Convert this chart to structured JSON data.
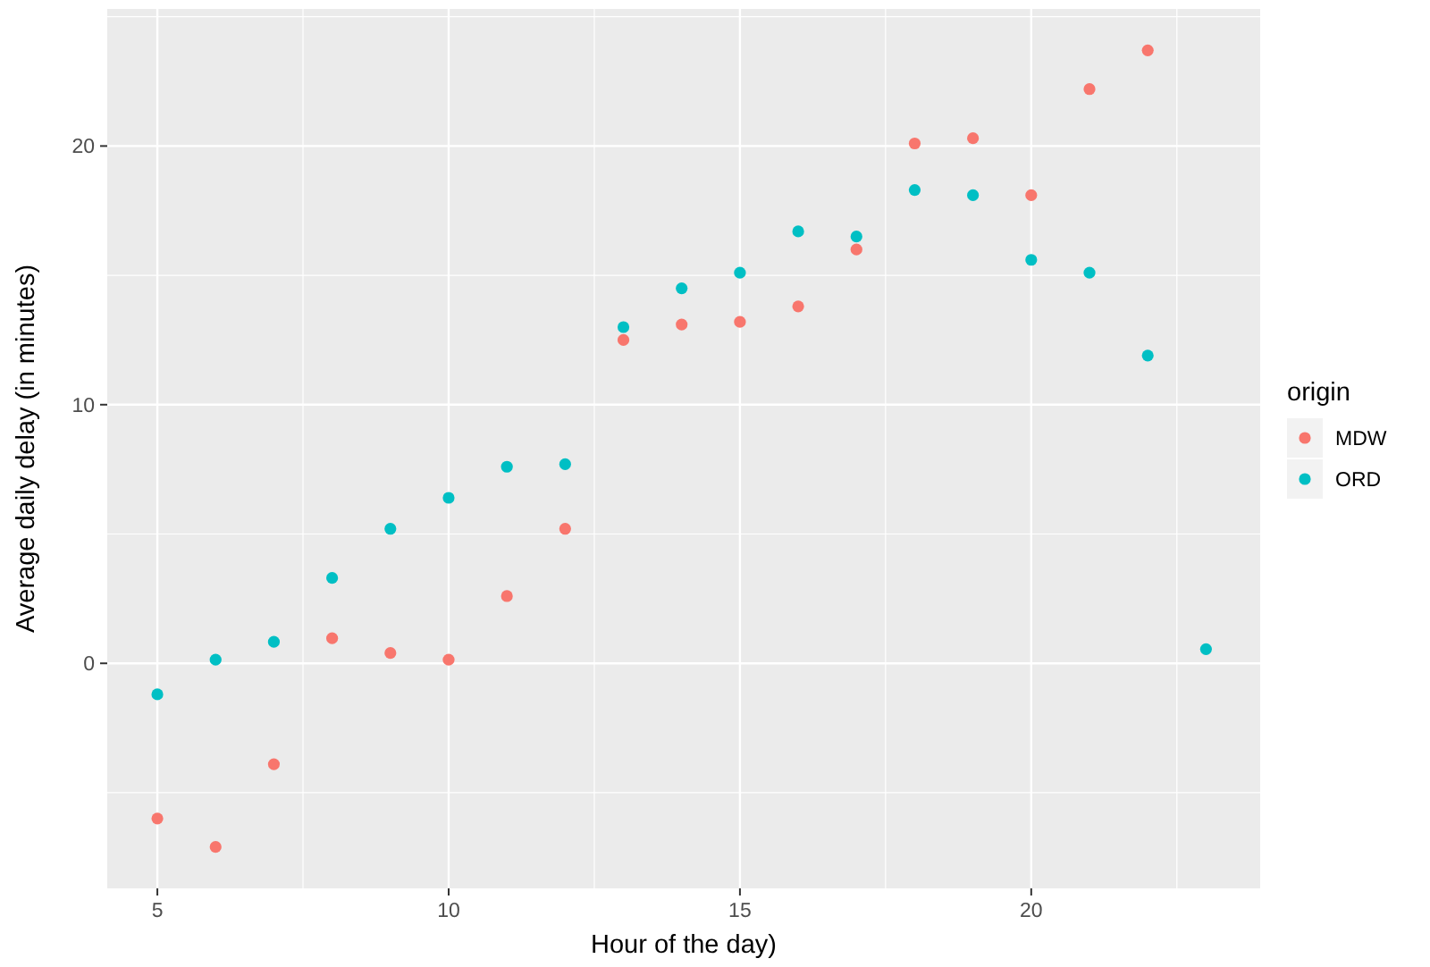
{
  "chart_data": {
    "type": "scatter",
    "xlabel": "Hour of the day)",
    "ylabel": "Average daily delay (in minutes)",
    "legend_title": "origin",
    "x": [
      5,
      6,
      7,
      8,
      9,
      10,
      11,
      12,
      13,
      14,
      15,
      16,
      17,
      18,
      19,
      20,
      21,
      22
    ],
    "series": [
      {
        "name": "MDW",
        "color": "#f8766d",
        "values": [
          -6.0,
          -7.1,
          -3.9,
          0.97,
          0.4,
          0.14,
          2.6,
          5.2,
          12.5,
          13.1,
          13.2,
          13.8,
          16.0,
          20.1,
          20.3,
          18.1,
          22.2,
          23.7
        ]
      },
      {
        "name": "ORD",
        "color": "#00bfc4",
        "x": [
          5,
          6,
          7,
          8,
          9,
          10,
          11,
          12,
          13,
          14,
          15,
          16,
          17,
          18,
          19,
          20,
          21,
          22,
          23
        ],
        "values": [
          -1.2,
          0.14,
          0.83,
          3.3,
          5.2,
          6.4,
          7.6,
          7.7,
          13.0,
          14.5,
          15.1,
          16.7,
          16.5,
          18.3,
          18.1,
          15.6,
          15.1,
          11.9,
          0.55
        ]
      }
    ],
    "xlim": [
      4.14,
      23.93
    ],
    "ylim": [
      -8.7,
      25.3
    ],
    "xticks": [
      5,
      10,
      15,
      20
    ],
    "yticks": [
      0,
      10,
      20
    ],
    "grid": true,
    "legend": "right",
    "marker": "circle"
  }
}
